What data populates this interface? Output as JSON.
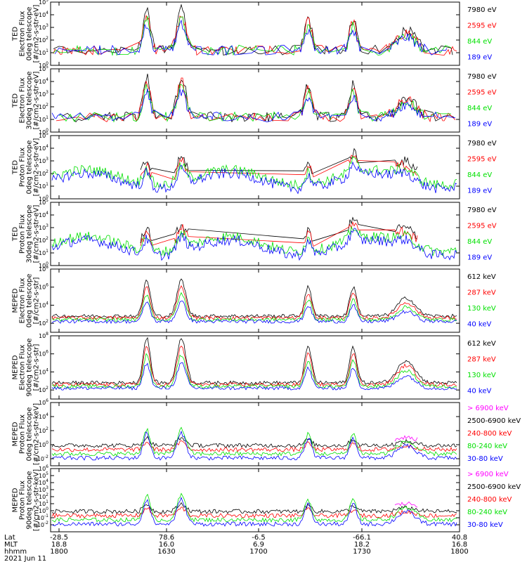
{
  "colors": {
    "black": "#000000",
    "red": "#ff0000",
    "green": "#00e000",
    "blue": "#0000ff",
    "magenta": "#ff00ff"
  },
  "chart_data": [
    {
      "type": "line",
      "ylabel": [
        "TED",
        "Electron Flux",
        "0deg telescope",
        "[#/cm2-s-str-eV]"
      ],
      "ylog": true,
      "ylim_exp": [
        0,
        5
      ],
      "tick_exps": [
        0,
        1,
        2,
        3,
        4,
        5
      ],
      "tick_base": "10",
      "series": [
        {
          "name": "7980 eV",
          "color": "black"
        },
        {
          "name": "2595 eV",
          "color": "red"
        },
        {
          "name": "844 eV",
          "color": "green"
        },
        {
          "name": "189 eV",
          "color": "blue"
        }
      ]
    },
    {
      "type": "line",
      "ylabel": [
        "TED",
        "Electron Flux",
        "30deg telescope",
        "[#/cm2-s-str-eV]"
      ],
      "ylog": true,
      "ylim_exp": [
        0,
        5
      ],
      "tick_exps": [
        0,
        1,
        2,
        3,
        4,
        5
      ],
      "tick_base": "10",
      "series": [
        {
          "name": "7980 eV",
          "color": "black"
        },
        {
          "name": "2595 eV",
          "color": "red"
        },
        {
          "name": "844 eV",
          "color": "green"
        },
        {
          "name": "189 eV",
          "color": "blue"
        }
      ]
    },
    {
      "type": "line",
      "ylabel": [
        "TED",
        "Proton Flux",
        "0deg telescope",
        "[#/cm2-s-str-eV]"
      ],
      "ylog": true,
      "ylim_exp": [
        0,
        5
      ],
      "tick_exps": [
        0,
        1,
        2,
        3,
        4,
        5
      ],
      "tick_base": "10",
      "series": [
        {
          "name": "7980 eV",
          "color": "black"
        },
        {
          "name": "2595 eV",
          "color": "red"
        },
        {
          "name": "844 eV",
          "color": "green"
        },
        {
          "name": "189 eV",
          "color": "blue"
        }
      ]
    },
    {
      "type": "line",
      "ylabel": [
        "TED",
        "Proton Flux",
        "30deg telescope",
        "[#/cm2-s-str-eV]"
      ],
      "ylog": true,
      "ylim_exp": [
        0,
        5
      ],
      "tick_exps": [
        0,
        1,
        2,
        3,
        4,
        5
      ],
      "tick_base": "10",
      "series": [
        {
          "name": "7980 eV",
          "color": "black"
        },
        {
          "name": "2595 eV",
          "color": "red"
        },
        {
          "name": "844 eV",
          "color": "green"
        },
        {
          "name": "189 eV",
          "color": "blue"
        }
      ]
    },
    {
      "type": "line",
      "ylabel": [
        "MEPED",
        "Electron Flux",
        "0deg telescope",
        "[#/cm2-s-str]"
      ],
      "ylog": true,
      "ylim_exp": [
        1,
        8
      ],
      "tick_exps": [
        2,
        4,
        6,
        8
      ],
      "tick_base": "10",
      "series": [
        {
          "name": "612 keV",
          "color": "black"
        },
        {
          "name": "287 keV",
          "color": "red"
        },
        {
          "name": "130 keV",
          "color": "green"
        },
        {
          "name": "40 keV",
          "color": "blue"
        }
      ]
    },
    {
      "type": "line",
      "ylabel": [
        "MEPED",
        "Electron Flux",
        "90deg telescope",
        "[#/cm2-s-str]"
      ],
      "ylog": true,
      "ylim_exp": [
        1,
        8
      ],
      "tick_exps": [
        2,
        4,
        6,
        8
      ],
      "tick_base": "10",
      "series": [
        {
          "name": "612 keV",
          "color": "black"
        },
        {
          "name": "287 keV",
          "color": "red"
        },
        {
          "name": "130 keV",
          "color": "green"
        },
        {
          "name": "40 keV",
          "color": "blue"
        }
      ]
    },
    {
      "type": "line",
      "ylabel": [
        "MEPED",
        "Proton Flux",
        "0deg telescope",
        "[#/cm2-s-str-keV]"
      ],
      "ylog": true,
      "ylim_exp": [
        -3,
        6
      ],
      "tick_exps": [
        -2,
        0,
        2,
        4,
        6
      ],
      "tick_base": "10",
      "series": [
        {
          "name": "> 6900 keV",
          "color": "magenta"
        },
        {
          "name": "2500-6900 keV",
          "color": "black"
        },
        {
          "name": "240-800 keV",
          "color": "red"
        },
        {
          "name": "80-240 keV",
          "color": "green"
        },
        {
          "name": "30-80 keV",
          "color": "blue"
        }
      ]
    },
    {
      "type": "line",
      "ylabel": [
        "MEPED",
        "Proton Flux",
        "90deg telescope",
        "[#/cm2-s-str-keV]"
      ],
      "ylog": true,
      "ylim_exp": [
        -3,
        6
      ],
      "tick_exps": [
        -2,
        -1,
        0,
        1,
        2,
        3,
        4,
        5,
        6
      ],
      "tick_base": "10",
      "series": [
        {
          "name": "> 6900 keV",
          "color": "magenta"
        },
        {
          "name": "2500-6900 keV",
          "color": "black"
        },
        {
          "name": "240-800 keV",
          "color": "red"
        },
        {
          "name": "80-240 keV",
          "color": "green"
        },
        {
          "name": "30-80 keV",
          "color": "blue"
        }
      ]
    }
  ],
  "x_axis": {
    "row_labels": [
      "Lat",
      "MLT",
      "hhmm"
    ],
    "ticks": [
      {
        "time": "1800",
        "lat": "-28.5",
        "mlt": "18.8"
      },
      {
        "time": "1630",
        "lat": "78.6",
        "mlt": "16.0"
      },
      {
        "time": "1700",
        "lat": "-6.5",
        "mlt": "6.9"
      },
      {
        "time": "1730",
        "lat": "-66.1",
        "mlt": "18.2"
      },
      {
        "time": "1800",
        "lat": "40.8",
        "mlt": "16.8"
      }
    ],
    "date": "2021 Jun 11"
  }
}
